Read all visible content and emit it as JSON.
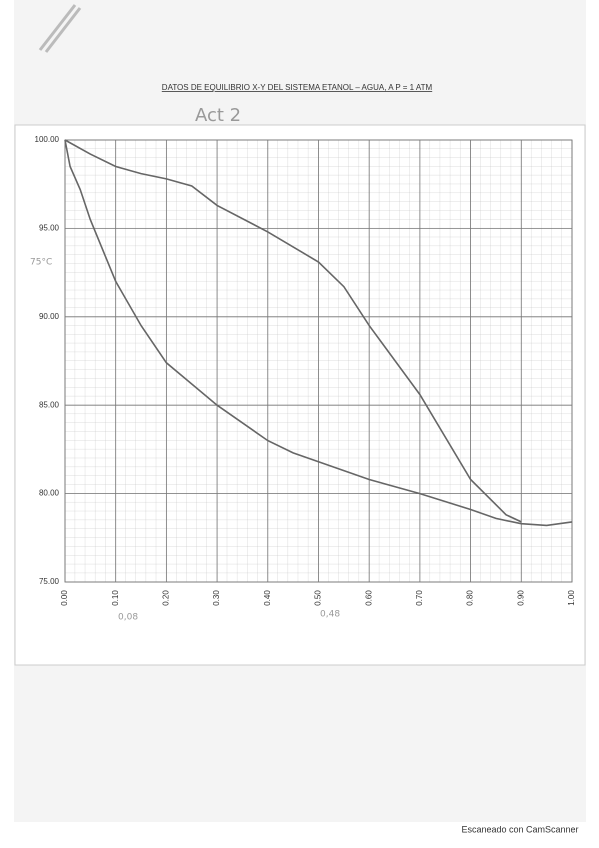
{
  "chart_data": {
    "type": "line",
    "title": "DATOS DE EQUILIBRIO X-Y DEL SISTEMA ETANOL – AGUA, A P = 1 ATM",
    "annotations": [
      "Act 2",
      "75°C",
      "0,08",
      "0,48"
    ],
    "xlim": [
      0,
      1
    ],
    "ylim": [
      75,
      100
    ],
    "xticks": [
      {
        "value": 0,
        "label": "0.00"
      },
      {
        "value": 0.1,
        "label": "0.10"
      },
      {
        "value": 0.2,
        "label": "0.20"
      },
      {
        "value": 0.3,
        "label": "0.30"
      },
      {
        "value": 0.4,
        "label": "0.40"
      },
      {
        "value": 0.5,
        "label": "0.50"
      },
      {
        "value": 0.6,
        "label": "0.60"
      },
      {
        "value": 0.7,
        "label": "0.70"
      },
      {
        "value": 0.8,
        "label": "0.80"
      },
      {
        "value": 0.9,
        "label": "0.90"
      },
      {
        "value": 1,
        "label": "1.00"
      }
    ],
    "yticks": [
      {
        "value": 75,
        "label": "75.00"
      },
      {
        "value": 80,
        "label": "80.00"
      },
      {
        "value": 85,
        "label": "85.00"
      },
      {
        "value": 90,
        "label": "90.00"
      },
      {
        "value": 95,
        "label": "95.00"
      },
      {
        "value": 100,
        "label": "100.00"
      }
    ],
    "grid": true,
    "series": [
      {
        "color": "#666666",
        "x": [
          0,
          0.01,
          0.03,
          0.05,
          0.1,
          0.15,
          0.2,
          0.3,
          0.4,
          0.45,
          0.5,
          0.6,
          0.7,
          0.8,
          0.85,
          0.9,
          0.95,
          1
        ],
        "values": [
          100,
          98.5,
          97.2,
          95.5,
          92,
          89.5,
          87.4,
          85,
          83,
          82.3,
          81.8,
          80.8,
          80,
          79.1,
          78.6,
          78.3,
          78.2,
          78.4
        ]
      },
      {
        "color": "#666666",
        "x": [
          0,
          0.05,
          0.1,
          0.15,
          0.2,
          0.25,
          0.3,
          0.4,
          0.5,
          0.55,
          0.6,
          0.7,
          0.8,
          0.87,
          0.9
        ],
        "values": [
          100,
          99.2,
          98.5,
          98.1,
          97.8,
          97.4,
          96.3,
          94.8,
          93.1,
          91.7,
          89.5,
          85.6,
          80.8,
          78.8,
          78.4
        ]
      }
    ]
  },
  "footer": "Escaneado con CamScanner"
}
